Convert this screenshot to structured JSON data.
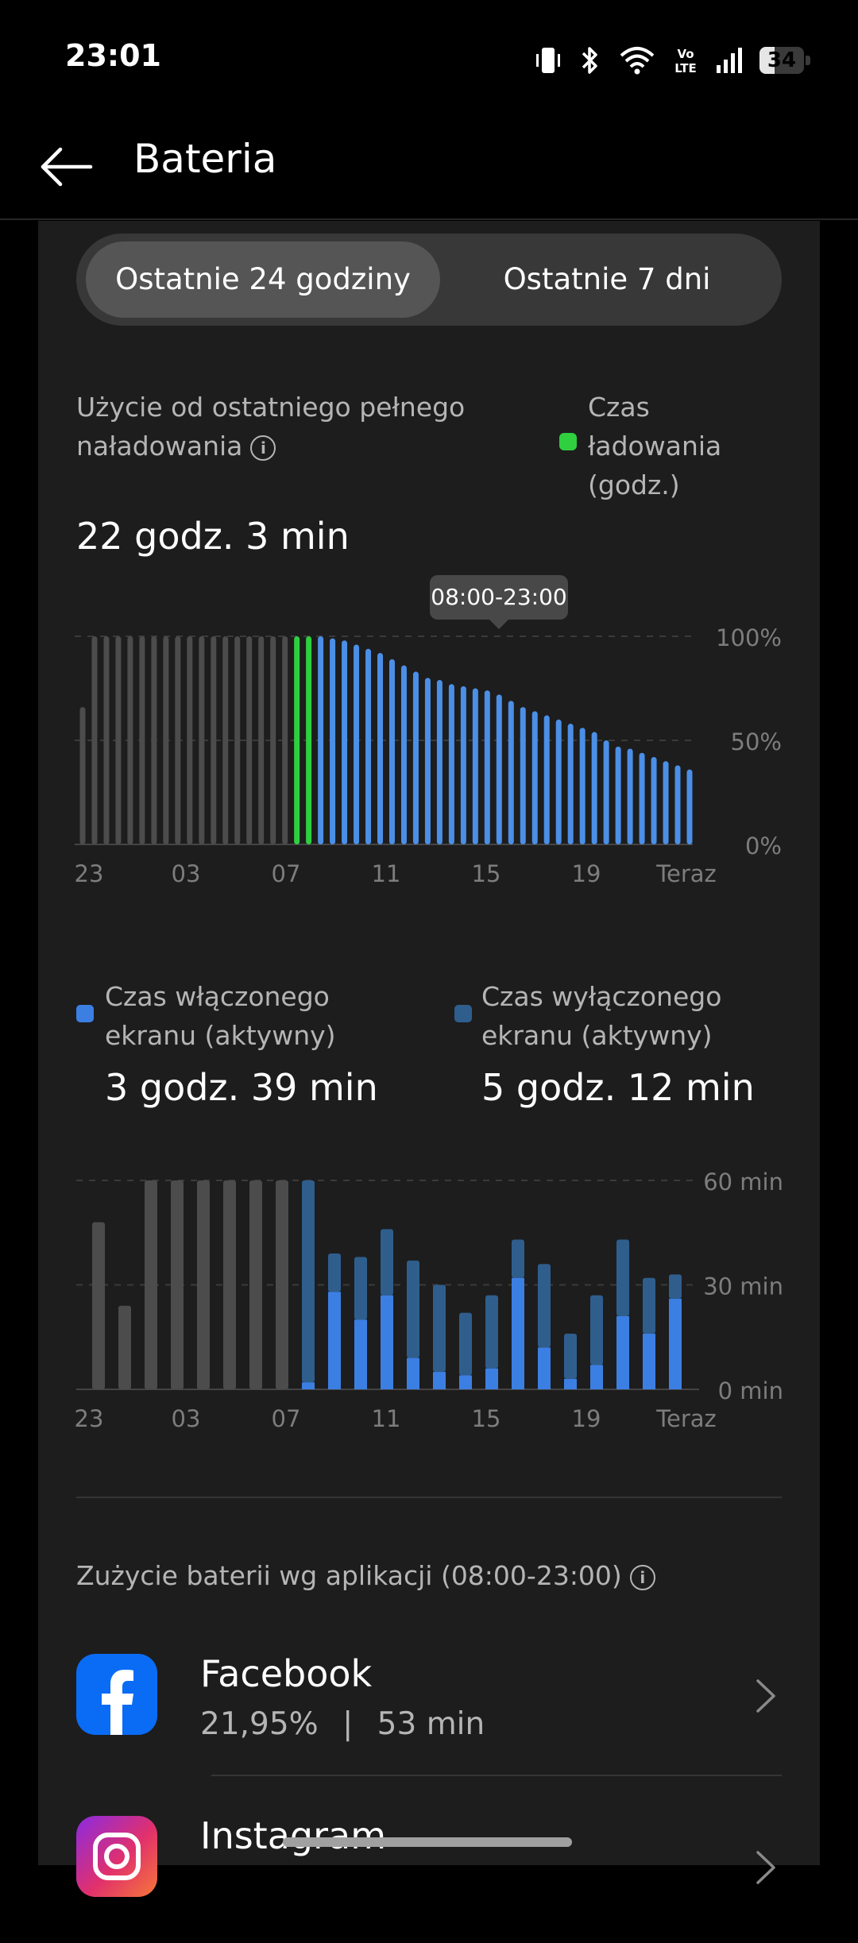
{
  "status": {
    "time": "23:01",
    "battery": "34",
    "battery_fraction": 0.34
  },
  "header": {
    "title": "Bateria"
  },
  "tabs": [
    {
      "label": "Ostatnie 24 godziny",
      "selected": true
    },
    {
      "label": "Ostatnie 7 dni",
      "selected": false
    }
  ],
  "usage": {
    "heading": "Użycie od ostatniego pełnego naładowania",
    "info_symbol": "i",
    "charge_legend": "Czas ładowania (godz.)",
    "value": "22 godz. 3 min"
  },
  "tooltip": "08:00-23:00",
  "screen": {
    "on_label": "Czas włączonego ekranu (aktywny)",
    "on_value": "3 godz. 39 min",
    "off_label": "Czas wyłączonego ekranu (aktywny)",
    "off_value": "5 godz. 12 min"
  },
  "colors": {
    "charging": "#2fcf3f",
    "discharge": "#4b8fe6",
    "screen_on": "#3c7fe3",
    "screen_off": "#2f5e8d",
    "inactive": "#4c4c4c"
  },
  "chart_data": [
    {
      "type": "bar",
      "ylim": [
        0,
        100
      ],
      "y_ticks": [
        "100%",
        "50%",
        "0%"
      ],
      "x_tick_labels": [
        "23",
        "03",
        "07",
        "11",
        "15",
        "19",
        "Teraz"
      ],
      "values": [
        66,
        100,
        100,
        100,
        100,
        100,
        100,
        100,
        100,
        100,
        100,
        100,
        100,
        100,
        100,
        100,
        100,
        100,
        100,
        100,
        100,
        99,
        98,
        96,
        94,
        92,
        89,
        86,
        83,
        80,
        79,
        77,
        76,
        75,
        74,
        72,
        69,
        66,
        64,
        62,
        60,
        58,
        56,
        54,
        50,
        47,
        46,
        44,
        42,
        40,
        38,
        36
      ],
      "bar_kind": [
        "inactive",
        "inactive",
        "inactive",
        "inactive",
        "inactive",
        "inactive",
        "inactive",
        "inactive",
        "inactive",
        "inactive",
        "inactive",
        "inactive",
        "inactive",
        "inactive",
        "inactive",
        "inactive",
        "inactive",
        "inactive",
        "charging",
        "charging",
        "discharge",
        "discharge",
        "discharge",
        "discharge",
        "discharge",
        "discharge",
        "discharge",
        "discharge",
        "discharge",
        "discharge",
        "discharge",
        "discharge",
        "discharge",
        "discharge",
        "discharge",
        "discharge",
        "discharge",
        "discharge",
        "discharge",
        "discharge",
        "discharge",
        "discharge",
        "discharge",
        "discharge",
        "discharge",
        "discharge",
        "discharge",
        "discharge",
        "discharge",
        "discharge",
        "discharge",
        "discharge"
      ]
    },
    {
      "type": "stacked-bar",
      "ylim": [
        0,
        60
      ],
      "y_ticks": [
        "60 min",
        "30 min",
        "0 min"
      ],
      "x_tick_labels": [
        "23",
        "03",
        "07",
        "11",
        "15",
        "19",
        "Teraz"
      ],
      "total_minutes": [
        48,
        24,
        60,
        60,
        60,
        60,
        60,
        60,
        60,
        39,
        38,
        46,
        37,
        30,
        22,
        27,
        43,
        36,
        16,
        27,
        43,
        32,
        33
      ],
      "screen_on_minutes": [
        0,
        0,
        0,
        0,
        0,
        0,
        0,
        0,
        2,
        28,
        20,
        27,
        9,
        5,
        4,
        6,
        32,
        12,
        3,
        7,
        21,
        16,
        26
      ],
      "inactive": [
        true,
        true,
        true,
        true,
        true,
        true,
        true,
        true,
        false,
        false,
        false,
        false,
        false,
        false,
        false,
        false,
        false,
        false,
        false,
        false,
        false,
        false,
        false
      ]
    }
  ],
  "apps": {
    "heading": "Zużycie baterii wg aplikacji (08:00-23:00)",
    "info_symbol": "i",
    "items": [
      {
        "name": "Facebook",
        "percent": "21,95%",
        "separator": "|",
        "time": "53 min",
        "icon": "facebook-icon"
      },
      {
        "name": "Instagram",
        "icon": "instagram-icon"
      }
    ]
  }
}
